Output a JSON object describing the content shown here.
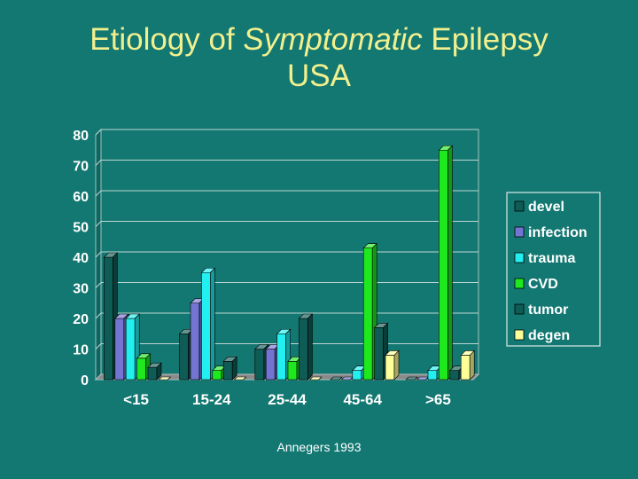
{
  "slide": {
    "title_part1": "Etiology of ",
    "title_emph": "Symptomatic",
    "title_part2": " Epilepsy",
    "title_line2": "USA",
    "source": "Annegers 1993"
  },
  "colors": {
    "background": "#137872",
    "title": "#f2f08e",
    "plot_bg": "#137872",
    "grid": "#bcd6d3",
    "text": "#ffffff"
  },
  "chart_data": {
    "type": "bar",
    "style": "3d-clustered",
    "categories": [
      "<15",
      "15-24",
      "25-44",
      "45-64",
      ">65"
    ],
    "series": [
      {
        "name": "devel",
        "color": "#0f5c56",
        "values": [
          40,
          15,
          10,
          0,
          0
        ]
      },
      {
        "name": "infection",
        "color": "#7474d2",
        "values": [
          20,
          25,
          10,
          0,
          0
        ]
      },
      {
        "name": "trauma",
        "color": "#22f0f0",
        "values": [
          20,
          35,
          15,
          3,
          3
        ]
      },
      {
        "name": "CVD",
        "color": "#1ee81e",
        "values": [
          7,
          3,
          6,
          43,
          75
        ]
      },
      {
        "name": "tumor",
        "color": "#0f5c56",
        "values": [
          4,
          6,
          20,
          17,
          3
        ]
      },
      {
        "name": "degen",
        "color": "#ffff99",
        "values": [
          0,
          0,
          0,
          8,
          8
        ]
      }
    ],
    "yticks": [
      0,
      10,
      20,
      30,
      40,
      50,
      60,
      70,
      80
    ],
    "ylim": [
      0,
      80
    ],
    "legend": "right",
    "grid": true,
    "title": "",
    "xlabel": "",
    "ylabel": ""
  }
}
